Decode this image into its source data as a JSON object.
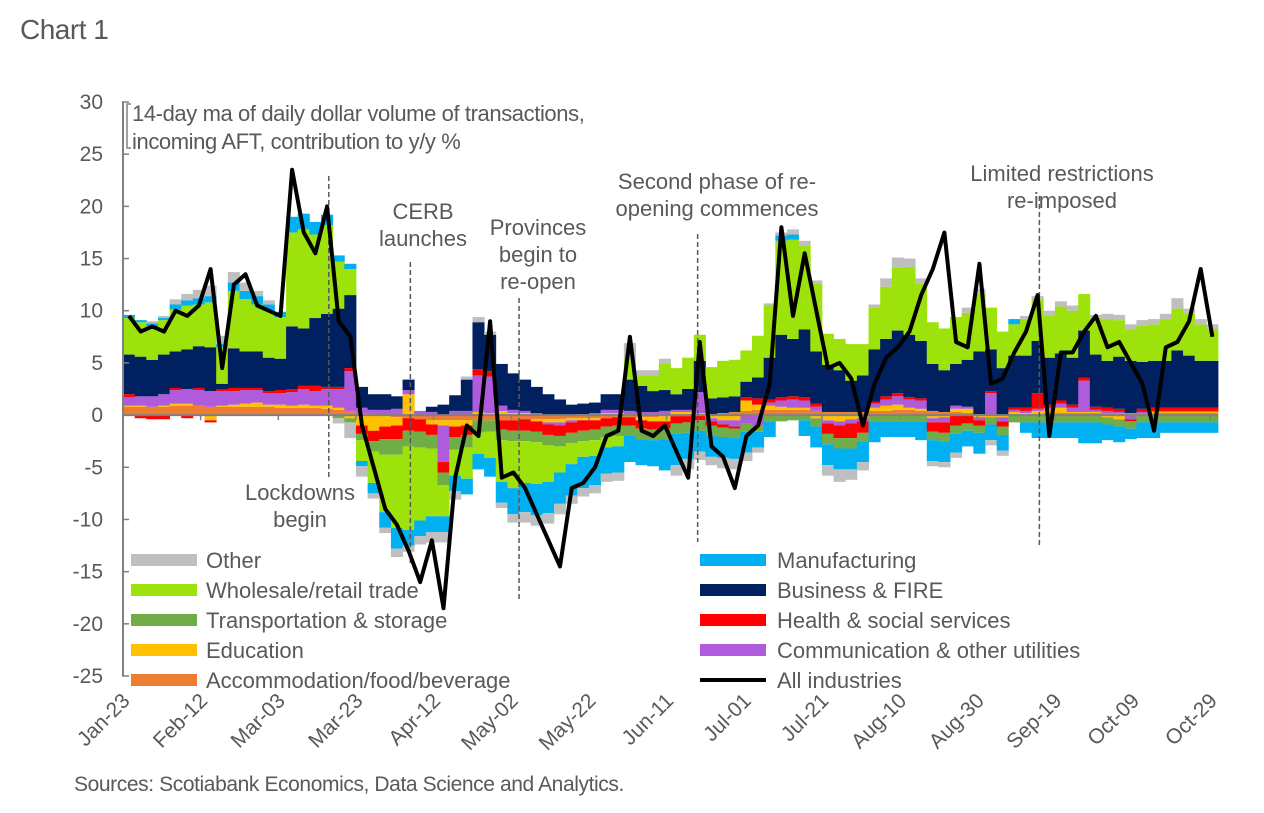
{
  "title": "Chart 1",
  "sources": "Sources: Scotiabank Economics, Data Science and Analytics.",
  "chart_data": {
    "type": "bar",
    "subtype": "stacked bar with line overlay",
    "subtitle_lines": [
      "14-day ma of daily dollar volume of transactions,",
      "incoming AFT, contribution to y/y %"
    ],
    "ylabel": "",
    "xlabel": "",
    "ylim": [
      -25,
      30
    ],
    "yticks": [
      30,
      25,
      20,
      15,
      10,
      5,
      0,
      -5,
      -10,
      -15,
      -20,
      -25
    ],
    "ytick_labels": [
      "30",
      "25",
      "20",
      "15",
      "10",
      "5",
      "0",
      "-5",
      "-10",
      "-15",
      "-20",
      "-25"
    ],
    "xtick_labels": [
      "Jan-23",
      "Feb-12",
      "Mar-03",
      "Mar-23",
      "Apr-12",
      "May-02",
      "May-22",
      "Jun-11",
      "Jul-01",
      "Jul-21",
      "Aug-10",
      "Aug-30",
      "Sep-19",
      "Oct-09",
      "Oct-29"
    ],
    "x_start": "Jan-23",
    "x_step_days": 3,
    "x_count": 94,
    "grid": false,
    "legend": {
      "placement": "bottom-inside, two columns",
      "left": [
        "Other",
        "Wholesale/retail trade",
        "Transportation & storage",
        "Education",
        "Accommodation/food/beverage"
      ],
      "right": [
        "Manufacturing",
        "Business & FIRE",
        "Health & social services",
        "Communication & other utilities",
        "All industries"
      ]
    },
    "annotations": [
      {
        "text_lines": [
          "Lockdowns",
          "begin"
        ],
        "date": "Mar-16"
      },
      {
        "text_lines": [
          "CERB",
          "launches"
        ],
        "date": "Apr-06"
      },
      {
        "text_lines": [
          "Provinces",
          "begin to",
          "re-open"
        ],
        "date": "May-04"
      },
      {
        "text_lines": [
          "Second phase of re-",
          "opening commences"
        ],
        "date": "Jun-19"
      },
      {
        "text_lines": [
          "Limited restrictions",
          "re-imposed"
        ],
        "date": "Sep-15"
      }
    ],
    "series": [
      {
        "name": "Accommodation/food/beverage",
        "color": "#ED7D31",
        "values": [
          0.8,
          0.8,
          0.8,
          0.8,
          0.9,
          0.9,
          0.9,
          0.8,
          0.8,
          0.8,
          0.8,
          0.8,
          0.8,
          0.7,
          0.7,
          0.7,
          0.7,
          0.6,
          0.5,
          0.4,
          0.2,
          0.1,
          -0.1,
          -0.2,
          -0.3,
          -0.4,
          -0.5,
          -0.5,
          -0.5,
          -0.5,
          -0.5,
          -0.5,
          -0.5,
          -0.5,
          -0.4,
          -0.4,
          -0.4,
          -0.4,
          -0.3,
          -0.3,
          -0.3,
          -0.3,
          -0.2,
          -0.2,
          -0.2,
          -0.2,
          -0.1,
          -0.1,
          -0.1,
          0.0,
          0.1,
          0.2,
          0.3,
          0.4,
          0.5,
          0.5,
          0.5,
          0.5,
          0.5,
          0.4,
          0.3,
          0.3,
          0.3,
          0.3,
          0.4,
          0.4,
          0.5,
          0.5,
          0.4,
          0.4,
          0.3,
          0.3,
          0.2,
          0.1,
          0.1,
          0.0,
          0.1,
          0.1,
          0.1,
          0.2,
          0.2,
          0.2,
          0.2,
          0.2,
          0.2,
          0.2,
          0.2,
          0.2,
          0.2,
          0.2,
          0.2,
          0.2,
          0.2,
          0.2
        ]
      },
      {
        "name": "Education",
        "color": "#FFC000",
        "values": [
          0.1,
          0.1,
          0.0,
          0.1,
          0.2,
          0.2,
          0.0,
          -0.5,
          0.1,
          0.2,
          0.3,
          0.4,
          0.2,
          0.3,
          0.2,
          0.3,
          0.2,
          0.3,
          0.2,
          -0.3,
          -1.0,
          -1.5,
          -1.0,
          -0.8,
          2.0,
          0.0,
          -0.4,
          -0.5,
          -0.6,
          -0.5,
          0.3,
          0.2,
          0.4,
          0.2,
          0.2,
          -0.2,
          -0.3,
          -0.3,
          -0.2,
          -0.2,
          -0.2,
          0.2,
          0.2,
          0.1,
          -0.3,
          -0.4,
          -0.5,
          0.3,
          0.3,
          0.2,
          -0.3,
          -0.5,
          -0.5,
          1.0,
          0.5,
          0.4,
          0.3,
          0.2,
          0.2,
          -0.3,
          -0.5,
          -0.6,
          -0.4,
          -0.3,
          0.3,
          0.5,
          0.5,
          0.2,
          0.2,
          -0.3,
          -0.2,
          0.3,
          0.4,
          -0.2,
          -0.2,
          -0.2,
          0.2,
          0.1,
          0.3,
          0.3,
          0.5,
          0.1,
          0.1,
          0.1,
          -0.2,
          -0.4,
          0.0,
          0.0,
          0.1,
          0.1,
          0.1,
          0.1,
          0.1,
          0.1
        ]
      },
      {
        "name": "Communication & other utilities",
        "color": "#AE5BDC",
        "values": [
          0.8,
          0.9,
          1.0,
          1.1,
          1.3,
          1.4,
          1.5,
          1.5,
          1.4,
          1.3,
          1.3,
          1.2,
          1.1,
          1.1,
          1.3,
          1.5,
          1.4,
          1.6,
          1.8,
          3.8,
          0.5,
          0.4,
          0.5,
          0.6,
          0.4,
          0.4,
          0.3,
          -3.5,
          0.4,
          0.4,
          3.5,
          3.5,
          0.5,
          0.3,
          0.2,
          0.2,
          -0.2,
          -0.3,
          -0.2,
          0.1,
          0.2,
          0.3,
          0.3,
          0.3,
          0.3,
          0.3,
          0.4,
          0.2,
          0.2,
          2.0,
          -0.3,
          -0.4,
          -0.6,
          -0.8,
          -1.0,
          0.3,
          0.6,
          0.8,
          0.7,
          0.4,
          -0.3,
          -0.4,
          -0.4,
          -0.3,
          0.4,
          0.6,
          0.8,
          0.8,
          0.8,
          -0.4,
          -0.5,
          0.3,
          0.2,
          -0.3,
          2.0,
          -0.4,
          0.2,
          0.2,
          0.2,
          0.2,
          0.4,
          0.4,
          3.0,
          0.2,
          0.2,
          0.1,
          -0.4,
          0.1,
          0.1,
          0.1,
          0.1,
          0.1,
          0.1,
          0.1
        ]
      },
      {
        "name": "Health & social services",
        "color": "#FF0000",
        "values": [
          0.3,
          -0.3,
          -0.4,
          -0.4,
          0.2,
          -0.3,
          0.2,
          -0.2,
          0.2,
          0.3,
          0.2,
          0.2,
          0.2,
          0.3,
          0.3,
          0.3,
          0.5,
          0.2,
          0.2,
          0.3,
          -0.8,
          -1.0,
          -1.2,
          -1.3,
          -1.2,
          -1.2,
          -1.0,
          -1.0,
          -1.0,
          -0.9,
          0.6,
          0.5,
          -0.9,
          -1.0,
          -1.1,
          -1.0,
          -1.0,
          -1.0,
          -1.0,
          -1.0,
          -0.9,
          -0.8,
          -0.8,
          -0.8,
          -0.8,
          -0.8,
          -0.7,
          -0.7,
          -0.6,
          -0.5,
          -0.4,
          -0.3,
          -0.2,
          0.3,
          0.6,
          0.3,
          0.3,
          0.3,
          0.3,
          0.3,
          -1.0,
          -1.2,
          -1.4,
          -1.1,
          0.2,
          0.3,
          0.3,
          0.2,
          0.2,
          -0.9,
          -1.0,
          -1.0,
          -0.8,
          -0.5,
          0.2,
          -0.5,
          0.2,
          0.3,
          1.5,
          0.3,
          0.3,
          0.3,
          0.3,
          0.3,
          0.3,
          0.3,
          -0.2,
          0.3,
          0.3,
          0.3,
          0.3,
          0.3,
          0.3,
          0.3
        ]
      },
      {
        "name": "Transportation & storage",
        "color": "#70AD47",
        "values": [
          0.0,
          0.0,
          0.0,
          0.0,
          0.0,
          0.0,
          0.0,
          0.0,
          0.0,
          0.0,
          0.0,
          0.0,
          0.0,
          0.0,
          0.0,
          0.0,
          0.0,
          0.0,
          -0.3,
          -0.4,
          -0.6,
          -1.0,
          -1.5,
          -1.5,
          -1.5,
          -1.5,
          -1.3,
          -1.2,
          -1.2,
          -1.2,
          -1.2,
          -1.1,
          -1.0,
          -1.0,
          -1.0,
          -1.0,
          -1.0,
          -1.0,
          -1.0,
          -1.0,
          -1.0,
          -1.0,
          -1.0,
          -1.0,
          -1.0,
          -1.0,
          -1.0,
          -1.0,
          -1.0,
          -1.0,
          -1.0,
          -0.9,
          -0.9,
          -0.8,
          -0.6,
          -0.6,
          -0.6,
          -0.5,
          -0.5,
          -0.8,
          -1.0,
          -1.0,
          -1.0,
          -0.8,
          -0.6,
          -0.6,
          -0.6,
          -0.6,
          -0.6,
          -0.8,
          -0.8,
          -0.8,
          -0.7,
          -0.7,
          -0.7,
          -0.8,
          -0.7,
          -0.7,
          -0.7,
          -0.7,
          -0.7,
          -0.7,
          -0.7,
          -0.7,
          -0.7,
          -0.7,
          -0.7,
          -0.7,
          -0.7,
          -0.7,
          -0.7,
          -0.7,
          -0.7,
          -0.7
        ]
      },
      {
        "name": "Business & FIRE",
        "color": "#002060",
        "values": [
          3.8,
          3.8,
          3.5,
          3.8,
          3.5,
          3.8,
          4.0,
          4.2,
          0.5,
          3.8,
          3.5,
          3.5,
          3.2,
          3.0,
          6.0,
          5.5,
          6.5,
          7.0,
          7.5,
          7.0,
          2.0,
          1.5,
          1.5,
          1.2,
          1.0,
          0.0,
          0.5,
          1.0,
          1.5,
          3.0,
          4.5,
          3.5,
          4.0,
          3.5,
          3.0,
          2.5,
          2.0,
          1.5,
          1.0,
          1.0,
          1.0,
          1.5,
          1.5,
          3.0,
          2.5,
          2.0,
          2.0,
          1.5,
          2.0,
          3.0,
          1.5,
          1.5,
          1.5,
          1.5,
          2.0,
          4.0,
          6.0,
          5.5,
          6.5,
          5.0,
          4.5,
          4.0,
          3.0,
          3.5,
          5.0,
          5.5,
          6.0,
          6.0,
          5.5,
          4.5,
          4.0,
          4.0,
          4.5,
          6.0,
          4.0,
          4.5,
          5.0,
          5.0,
          5.0,
          4.5,
          4.5,
          4.5,
          4.5,
          5.0,
          4.5,
          5.0,
          5.0,
          4.5,
          4.5,
          4.5,
          5.5,
          5.0,
          4.5,
          4.5
        ]
      },
      {
        "name": "Wholesale/retail trade",
        "color": "#9DE30B",
        "values": [
          3.5,
          3.3,
          3.2,
          3.3,
          4.0,
          4.2,
          4.0,
          4.3,
          3.5,
          5.5,
          5.0,
          4.5,
          4.5,
          4.0,
          9.0,
          9.5,
          8.0,
          8.5,
          4.5,
          2.5,
          -2.0,
          -3.0,
          -5.5,
          -7.0,
          -8.0,
          -7.0,
          -6.5,
          -3.0,
          -2.5,
          -3.0,
          -2.0,
          -2.5,
          -4.0,
          -4.5,
          -4.0,
          -4.0,
          -3.5,
          -2.5,
          -2.0,
          -1.5,
          -1.5,
          -1.0,
          -1.0,
          2.0,
          1.0,
          1.5,
          2.5,
          2.5,
          3.0,
          2.5,
          3.0,
          3.5,
          3.5,
          3.0,
          4.0,
          5.0,
          9.0,
          9.5,
          8.0,
          6.5,
          3.0,
          3.0,
          3.5,
          3.0,
          4.0,
          5.0,
          6.0,
          6.5,
          5.5,
          4.0,
          4.0,
          4.5,
          4.5,
          5.5,
          4.0,
          3.5,
          3.0,
          3.5,
          4.0,
          4.0,
          4.5,
          4.5,
          3.5,
          3.5,
          4.0,
          3.5,
          3.0,
          3.5,
          3.5,
          4.0,
          4.0,
          4.0,
          3.5,
          3.0
        ]
      },
      {
        "name": "Manufacturing",
        "color": "#00B0F0",
        "values": [
          0.3,
          0.2,
          0.3,
          0.2,
          0.5,
          0.5,
          0.6,
          0.6,
          0.3,
          0.8,
          0.8,
          0.8,
          0.6,
          0.5,
          1.5,
          1.5,
          1.2,
          1.0,
          0.6,
          0.5,
          -0.5,
          -1.0,
          -1.5,
          -2.0,
          -1.5,
          -1.5,
          -1.5,
          -1.5,
          -1.5,
          -1.5,
          -1.5,
          -1.8,
          -2.0,
          -2.5,
          -2.8,
          -3.0,
          -3.0,
          -3.0,
          -3.0,
          -3.0,
          -2.8,
          -2.5,
          -2.5,
          -2.5,
          -2.5,
          -2.5,
          -3.0,
          -3.0,
          -2.5,
          -2.0,
          -2.0,
          -2.0,
          -2.0,
          -2.0,
          -1.5,
          -1.5,
          0.5,
          0.5,
          -1.5,
          -2.0,
          -2.0,
          -2.0,
          -2.0,
          -2.0,
          -2.0,
          -1.5,
          -1.5,
          -1.5,
          -1.8,
          -2.0,
          -2.0,
          -1.8,
          -1.5,
          -2.0,
          -1.5,
          -1.5,
          0.5,
          -1.0,
          -1.5,
          -1.5,
          -1.5,
          -1.5,
          -2.0,
          -2.0,
          -1.5,
          -1.5,
          -1.0,
          -1.5,
          -1.5,
          -1.0,
          -1.0,
          -1.0,
          -1.0,
          -1.0
        ]
      },
      {
        "name": "Other",
        "color": "#BFBFBF",
        "values": [
          0.0,
          0.0,
          0.2,
          0.2,
          0.5,
          0.6,
          0.8,
          1.0,
          0.8,
          1.0,
          0.8,
          0.5,
          0.4,
          0.0,
          0.0,
          0.0,
          0.0,
          0.0,
          -0.5,
          -1.5,
          -1.0,
          -0.5,
          -0.5,
          -0.8,
          -0.6,
          -0.8,
          -1.0,
          -1.0,
          -0.8,
          0.3,
          0.5,
          0.3,
          -0.5,
          -0.8,
          -1.0,
          -1.0,
          -1.0,
          -1.0,
          -0.8,
          -0.8,
          -0.8,
          -0.8,
          -0.8,
          1.5,
          0.5,
          0.5,
          0.5,
          -1.0,
          -1.0,
          -0.8,
          -0.8,
          -1.0,
          -1.0,
          -0.8,
          -0.5,
          0.2,
          0.3,
          0.5,
          0.5,
          0.3,
          -1.0,
          -1.2,
          -1.0,
          -0.8,
          0.3,
          0.8,
          1.0,
          0.8,
          0.5,
          -0.5,
          -0.5,
          -0.5,
          0.5,
          0.5,
          -0.5,
          -0.5,
          0.0,
          0.3,
          0.3,
          0.5,
          0.5,
          0.5,
          0.0,
          0.3,
          0.5,
          0.5,
          0.5,
          0.5,
          0.5,
          0.5,
          1.0,
          0.5,
          0.5,
          0.5
        ]
      }
    ],
    "line": {
      "name": "All industries",
      "color": "#000000",
      "values": [
        9.5,
        8.0,
        8.5,
        8.0,
        10.0,
        9.5,
        10.5,
        14.0,
        4.5,
        12.5,
        13.5,
        10.5,
        10.0,
        9.5,
        23.5,
        17.5,
        15.5,
        20.0,
        9.0,
        7.5,
        -1.0,
        -5.0,
        -9.0,
        -10.5,
        -13.0,
        -16.0,
        -12.0,
        -18.5,
        -6.0,
        -1.0,
        -2.0,
        9.0,
        -6.0,
        -5.5,
        -7.0,
        -9.5,
        -12.0,
        -14.5,
        -7.0,
        -6.5,
        -5.0,
        -2.0,
        -1.5,
        7.5,
        -1.5,
        -2.0,
        -1.0,
        -3.5,
        -6.0,
        7.0,
        -3.0,
        -4.0,
        -7.0,
        -2.0,
        -1.0,
        3.0,
        18.0,
        9.5,
        15.5,
        10.0,
        4.5,
        5.0,
        3.5,
        -1.0,
        3.0,
        5.5,
        6.5,
        8.0,
        11.5,
        14.0,
        17.5,
        7.0,
        6.5,
        14.5,
        3.0,
        3.5,
        6.0,
        8.0,
        11.5,
        -2.0,
        6.0,
        6.0,
        8.0,
        9.5,
        6.5,
        7.0,
        5.0,
        3.0,
        -1.5,
        6.5,
        7.0,
        9.0,
        14.0,
        7.5
      ]
    }
  }
}
